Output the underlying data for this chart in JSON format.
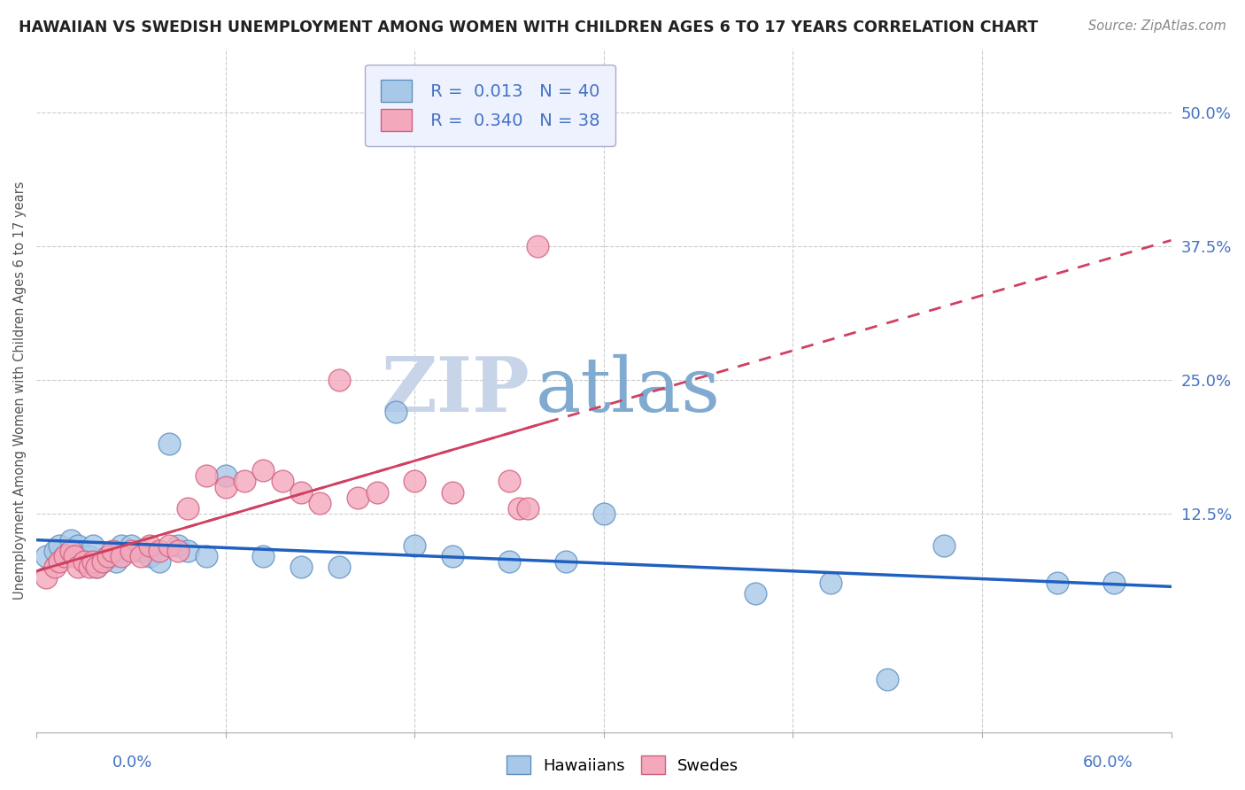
{
  "title": "HAWAIIAN VS SWEDISH UNEMPLOYMENT AMONG WOMEN WITH CHILDREN AGES 6 TO 17 YEARS CORRELATION CHART",
  "source": "Source: ZipAtlas.com",
  "ylabel": "Unemployment Among Women with Children Ages 6 to 17 years",
  "ytick_labels": [
    "12.5%",
    "25.0%",
    "37.5%",
    "50.0%"
  ],
  "ytick_values": [
    0.125,
    0.25,
    0.375,
    0.5
  ],
  "xmin": 0.0,
  "xmax": 0.6,
  "ymin": -0.08,
  "ymax": 0.56,
  "hawaiian_R": 0.013,
  "hawaiian_N": 40,
  "swedish_R": 0.34,
  "swedish_N": 38,
  "hawaiian_color": "#a8c8e8",
  "swedish_color": "#f4a8bc",
  "hawaiian_edge": "#6090c0",
  "swedish_edge": "#d06080",
  "reg_line_hawaiian_color": "#2060c0",
  "reg_line_swedish_color": "#d04060",
  "watermark_zip_color": "#c0cce0",
  "watermark_atlas_color": "#90b8d8",
  "legend_box_color": "#eef2ff",
  "hawaiian_x": [
    0.005,
    0.01,
    0.012,
    0.015,
    0.018,
    0.02,
    0.022,
    0.025,
    0.028,
    0.03,
    0.032,
    0.035,
    0.038,
    0.04,
    0.042,
    0.045,
    0.05,
    0.055,
    0.06,
    0.065,
    0.07,
    0.075,
    0.08,
    0.09,
    0.1,
    0.12,
    0.14,
    0.16,
    0.19,
    0.2,
    0.22,
    0.25,
    0.28,
    0.3,
    0.38,
    0.42,
    0.45,
    0.48,
    0.54,
    0.57
  ],
  "hawaiian_y": [
    0.085,
    0.09,
    0.095,
    0.085,
    0.1,
    0.09,
    0.095,
    0.08,
    0.085,
    0.095,
    0.075,
    0.08,
    0.085,
    0.085,
    0.08,
    0.095,
    0.095,
    0.09,
    0.085,
    0.08,
    0.19,
    0.095,
    0.09,
    0.085,
    0.16,
    0.085,
    0.075,
    0.075,
    0.22,
    0.095,
    0.085,
    0.08,
    0.08,
    0.125,
    0.05,
    0.06,
    -0.03,
    0.095,
    0.06,
    0.06
  ],
  "swedish_x": [
    0.005,
    0.01,
    0.012,
    0.015,
    0.018,
    0.02,
    0.022,
    0.025,
    0.028,
    0.03,
    0.032,
    0.035,
    0.038,
    0.04,
    0.045,
    0.05,
    0.055,
    0.06,
    0.065,
    0.07,
    0.075,
    0.08,
    0.09,
    0.1,
    0.11,
    0.12,
    0.13,
    0.14,
    0.15,
    0.16,
    0.17,
    0.18,
    0.2,
    0.22,
    0.25,
    0.255,
    0.26,
    0.265
  ],
  "swedish_y": [
    0.065,
    0.075,
    0.08,
    0.085,
    0.09,
    0.085,
    0.075,
    0.08,
    0.075,
    0.08,
    0.075,
    0.08,
    0.085,
    0.09,
    0.085,
    0.09,
    0.085,
    0.095,
    0.09,
    0.095,
    0.09,
    0.13,
    0.16,
    0.15,
    0.155,
    0.165,
    0.155,
    0.145,
    0.135,
    0.25,
    0.14,
    0.145,
    0.155,
    0.145,
    0.155,
    0.13,
    0.13,
    0.375
  ]
}
